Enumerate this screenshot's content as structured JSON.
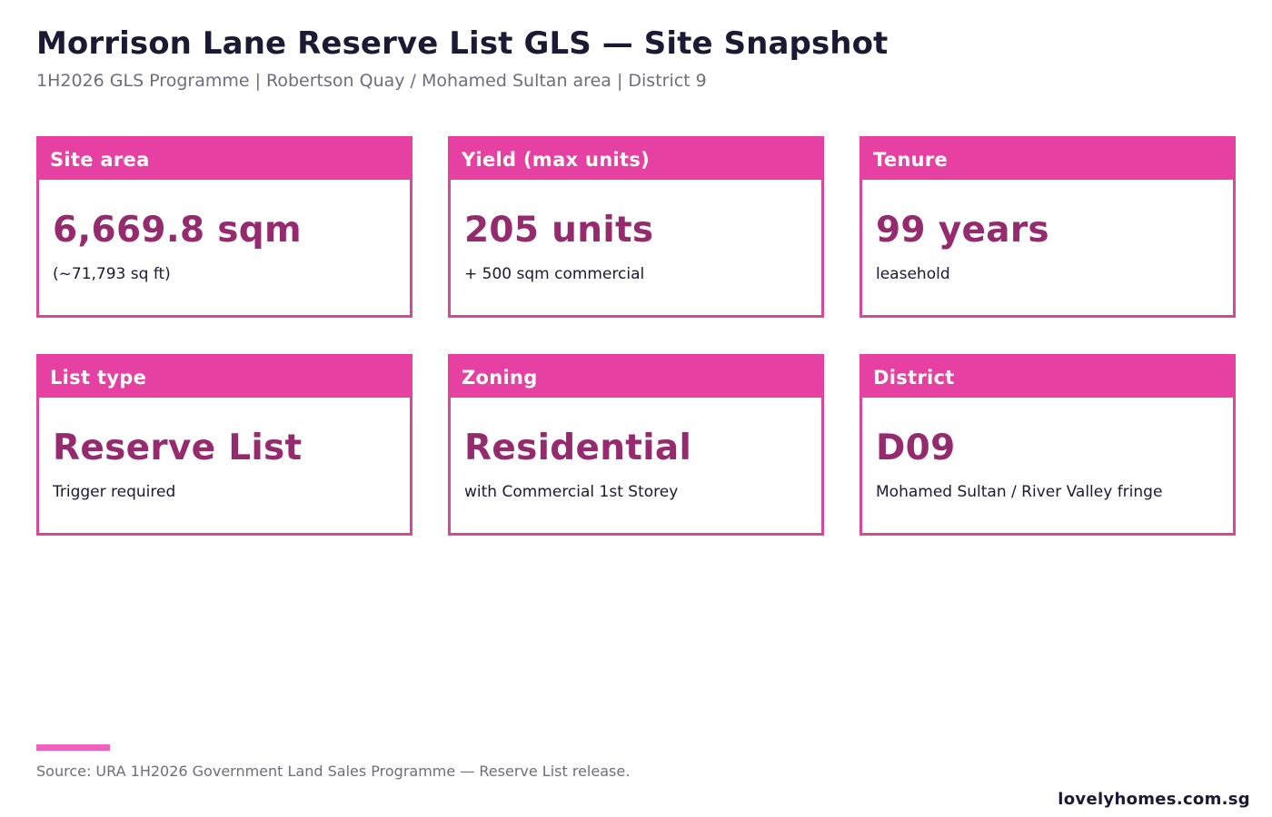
{
  "header": {
    "title": "Morrison Lane Reserve List GLS — Site Snapshot",
    "subtitle": "1H2026 GLS Programme | Robertson Quay / Mohamed Sultan area | District 9"
  },
  "cards": [
    {
      "label": "Site area",
      "value": "6,669.8 sqm",
      "note": "(~71,793 sq ft)"
    },
    {
      "label": "Yield (max units)",
      "value": "205 units",
      "note": "+ 500 sqm commercial"
    },
    {
      "label": "Tenure",
      "value": "99 years",
      "note": "leasehold"
    },
    {
      "label": "List type",
      "value": "Reserve List",
      "note": "Trigger required"
    },
    {
      "label": "Zoning",
      "value": "Residential",
      "note": "with Commercial 1st Storey"
    },
    {
      "label": "District",
      "value": "D09",
      "note": "Mohamed Sultan / River Valley fringe"
    }
  ],
  "footer": {
    "source": "Source: URA 1H2026 Government Land Sales Programme — Reserve List release.",
    "brand": "lovelyhomes.com.sg"
  },
  "colors": {
    "header_fill": "#e540a2",
    "border": "#d9479c",
    "value_text": "#962a6f",
    "title_text": "#1b1a35",
    "muted_text": "#6f6d7e",
    "accent_bar": "#f061bf"
  }
}
